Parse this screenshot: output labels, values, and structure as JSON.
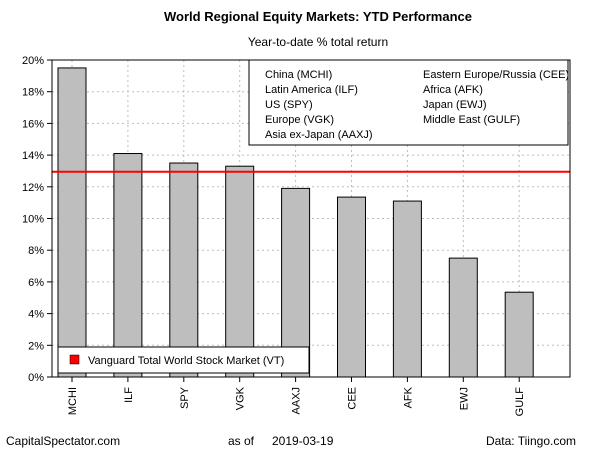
{
  "chart_data": {
    "type": "bar",
    "title": "World Regional Equity Markets: YTD Performance",
    "subtitle": "Year-to-date % total return",
    "categories": [
      "MCHI",
      "ILF",
      "SPY",
      "VGK",
      "AAXJ",
      "CEE",
      "AFK",
      "EWJ",
      "GULF"
    ],
    "values": [
      19.5,
      14.1,
      13.5,
      13.3,
      11.9,
      11.35,
      11.1,
      7.5,
      5.35
    ],
    "ylim": [
      0,
      20
    ],
    "yticks": [
      0,
      2,
      4,
      6,
      8,
      10,
      12,
      14,
      16,
      18,
      20
    ],
    "ytick_suffix": "%",
    "grid": true,
    "bar_color": "#bebebe",
    "reference_line": {
      "label": "Vanguard Total World Stock Market (VT)",
      "value": 12.95,
      "color": "#ff0000"
    },
    "legend_entries": [
      "China (MCHI)",
      "Latin America (ILF)",
      "US (SPY)",
      "Europe (VGK)",
      "Asia ex-Japan (AAXJ)",
      "Eastern Europe/Russia (CEE)",
      "Africa (AFK)",
      "Japan (EWJ)",
      "Middle East (GULF)"
    ],
    "legend_placement": "top-right",
    "reference_legend_placement": "bottom-left"
  },
  "footer": {
    "left": "CapitalSpectator.com",
    "center_prefix": "as of",
    "center_date": "2019-03-19",
    "right": "Data: Tiingo.com"
  }
}
